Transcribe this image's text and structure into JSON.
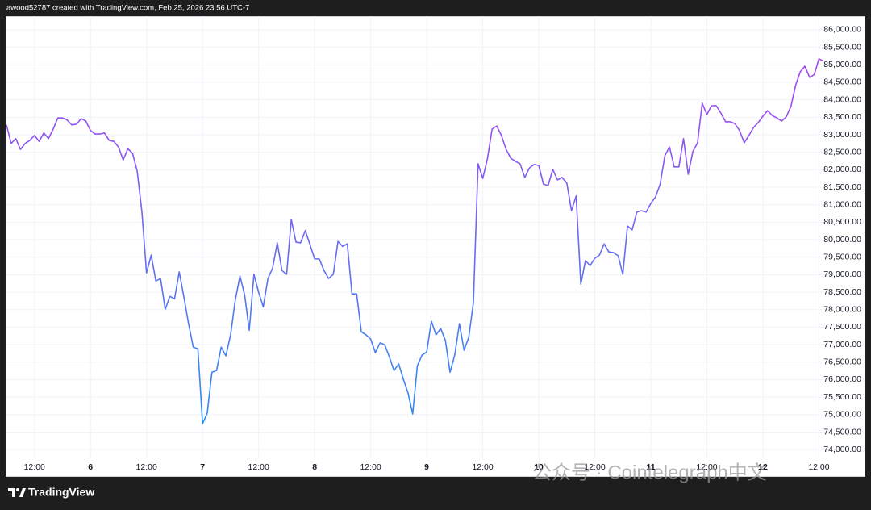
{
  "header": "awood52787 created with TradingView.com, Feb 25, 2026 23:56 UTC-7",
  "footer_brand": "TradingView",
  "watermark": "公众号 · Cointelegraph中文",
  "chart_data": {
    "type": "line",
    "gradient": [
      "#b93cf2",
      "#2196f3"
    ],
    "grid": true,
    "ylim": [
      73750,
      86390
    ],
    "yticks": [
      {
        "value": 74000,
        "label": "74,000.00"
      },
      {
        "value": 74500,
        "label": "74,500.00"
      },
      {
        "value": 75000,
        "label": "75,000.00"
      },
      {
        "value": 75500,
        "label": "75,500.00"
      },
      {
        "value": 76000,
        "label": "76,000.00"
      },
      {
        "value": 76500,
        "label": "76,500.00"
      },
      {
        "value": 77000,
        "label": "77,000.00"
      },
      {
        "value": 77500,
        "label": "77,500.00"
      },
      {
        "value": 78000,
        "label": "78,000.00"
      },
      {
        "value": 78500,
        "label": "78,500.00"
      },
      {
        "value": 79000,
        "label": "79,000.00"
      },
      {
        "value": 79500,
        "label": "79,500.00"
      },
      {
        "value": 80000,
        "label": "80,000.00"
      },
      {
        "value": 80500,
        "label": "80,500.00"
      },
      {
        "value": 81000,
        "label": "81,000.00"
      },
      {
        "value": 81500,
        "label": "81,500.00"
      },
      {
        "value": 82000,
        "label": "82,000.00"
      },
      {
        "value": 82500,
        "label": "82,500.00"
      },
      {
        "value": 83000,
        "label": "83,000.00"
      },
      {
        "value": 83500,
        "label": "83,500.00"
      },
      {
        "value": 84000,
        "label": "84,000.00"
      },
      {
        "value": 84500,
        "label": "84,500.00"
      },
      {
        "value": 85000,
        "label": "85,000.00"
      },
      {
        "value": 85500,
        "label": "85,500.00"
      },
      {
        "value": 86000,
        "label": "86,000.00"
      }
    ],
    "categories": [
      null,
      null,
      null,
      null,
      null,
      null,
      "12:00",
      null,
      null,
      null,
      null,
      null,
      null,
      null,
      null,
      null,
      null,
      null,
      "6",
      null,
      null,
      null,
      null,
      null,
      null,
      null,
      null,
      null,
      null,
      null,
      "12:00",
      null,
      null,
      null,
      null,
      null,
      null,
      null,
      null,
      null,
      null,
      null,
      "7",
      null,
      null,
      null,
      null,
      null,
      null,
      null,
      null,
      null,
      null,
      null,
      "12:00",
      null,
      null,
      null,
      null,
      null,
      null,
      null,
      null,
      null,
      null,
      null,
      "8",
      null,
      null,
      null,
      null,
      null,
      null,
      null,
      null,
      null,
      null,
      null,
      "12:00",
      null,
      null,
      null,
      null,
      null,
      null,
      null,
      null,
      null,
      null,
      null,
      "9",
      null,
      null,
      null,
      null,
      null,
      null,
      null,
      null,
      null,
      null,
      null,
      "12:00",
      null,
      null,
      null,
      null,
      null,
      null,
      null,
      null,
      null,
      null,
      null,
      "10",
      null,
      null,
      null,
      null,
      null,
      null,
      null,
      null,
      null,
      null,
      null,
      "12:00",
      null,
      null,
      null,
      null,
      null,
      null,
      null,
      null,
      null,
      null,
      null,
      "11",
      null,
      null,
      null,
      null,
      null,
      null,
      null,
      null,
      null,
      null,
      null,
      "12:00",
      null,
      null,
      null,
      null,
      null,
      null,
      null,
      null,
      null,
      null,
      null,
      "12",
      null,
      null,
      null,
      null,
      null,
      null,
      null,
      null,
      null,
      null,
      null,
      "12:00",
      null
    ],
    "values": [
      83280,
      82750,
      82890,
      82580,
      82750,
      82840,
      82980,
      82810,
      83050,
      82890,
      83160,
      83480,
      83480,
      83420,
      83280,
      83300,
      83460,
      83390,
      83120,
      83020,
      83020,
      83050,
      82840,
      82810,
      82650,
      82280,
      82600,
      82470,
      81960,
      80810,
      79050,
      79560,
      78820,
      78890,
      78010,
      78380,
      78310,
      79080,
      78360,
      77600,
      76930,
      76880,
      74740,
      75040,
      76210,
      76260,
      76930,
      76680,
      77280,
      78270,
      78960,
      78430,
      77410,
      79010,
      78500,
      78080,
      78890,
      79190,
      79910,
      79120,
      79010,
      80580,
      79930,
      79910,
      80260,
      79860,
      79450,
      79450,
      79120,
      78890,
      79010,
      79950,
      79810,
      79880,
      78450,
      78450,
      77370,
      77280,
      77160,
      76770,
      77050,
      77000,
      76650,
      76260,
      76450,
      76010,
      75620,
      75020,
      76400,
      76700,
      76790,
      77670,
      77280,
      77460,
      77120,
      76210,
      76700,
      77600,
      76840,
      77210,
      78200,
      82170,
      81750,
      82310,
      83160,
      83250,
      82980,
      82580,
      82330,
      82240,
      82170,
      81780,
      82050,
      82150,
      82120,
      81590,
      81550,
      82010,
      81710,
      81780,
      81620,
      80830,
      81250,
      78730,
      79400,
      79260,
      79470,
      79560,
      79880,
      79650,
      79630,
      79540,
      79010,
      80390,
      80280,
      80790,
      80830,
      80790,
      81040,
      81220,
      81590,
      82400,
      82650,
      82080,
      82080,
      82890,
      81870,
      82520,
      82770,
      83900,
      83580,
      83830,
      83830,
      83620,
      83370,
      83370,
      83320,
      83120,
      82770,
      82980,
      83210,
      83350,
      83530,
      83690,
      83550,
      83480,
      83390,
      83510,
      83810,
      84410,
      84800,
      84960,
      84640,
      84720,
      85170,
      85100
    ]
  }
}
